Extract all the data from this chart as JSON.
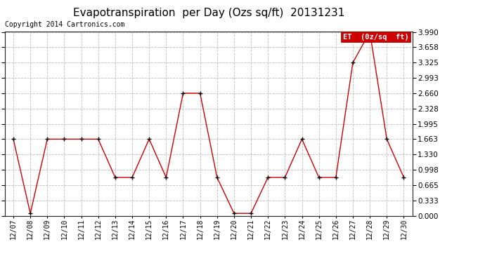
{
  "title": "Evapotranspiration  per Day (Ozs sq/ft)  20131231",
  "copyright": "Copyright 2014 Cartronics.com",
  "legend_label": "ET  (0z/sq  ft)",
  "dates": [
    "12/07",
    "12/08",
    "12/09",
    "12/10",
    "12/11",
    "12/12",
    "12/13",
    "12/14",
    "12/15",
    "12/16",
    "12/17",
    "12/18",
    "12/19",
    "12/20",
    "12/21",
    "12/22",
    "12/23",
    "12/24",
    "12/25",
    "12/26",
    "12/27",
    "12/28",
    "12/29",
    "12/30"
  ],
  "values": [
    1.663,
    0.05,
    1.663,
    1.663,
    1.663,
    1.663,
    0.831,
    0.831,
    1.663,
    0.831,
    2.66,
    2.66,
    0.831,
    0.05,
    0.05,
    0.831,
    0.831,
    1.663,
    0.831,
    0.831,
    3.325,
    3.99,
    1.663,
    0.831
  ],
  "line_color": "#cc0000",
  "marker_color": "#000000",
  "bg_color": "#ffffff",
  "grid_color": "#bbbbbb",
  "ylim_min": 0.0,
  "ylim_max": 3.99,
  "yticks": [
    0.0,
    0.333,
    0.665,
    0.998,
    1.33,
    1.663,
    1.995,
    2.328,
    2.66,
    2.993,
    3.325,
    3.658,
    3.99
  ],
  "title_fontsize": 11,
  "copyright_fontsize": 7,
  "legend_bg": "#cc0000",
  "legend_text_color": "#ffffff"
}
